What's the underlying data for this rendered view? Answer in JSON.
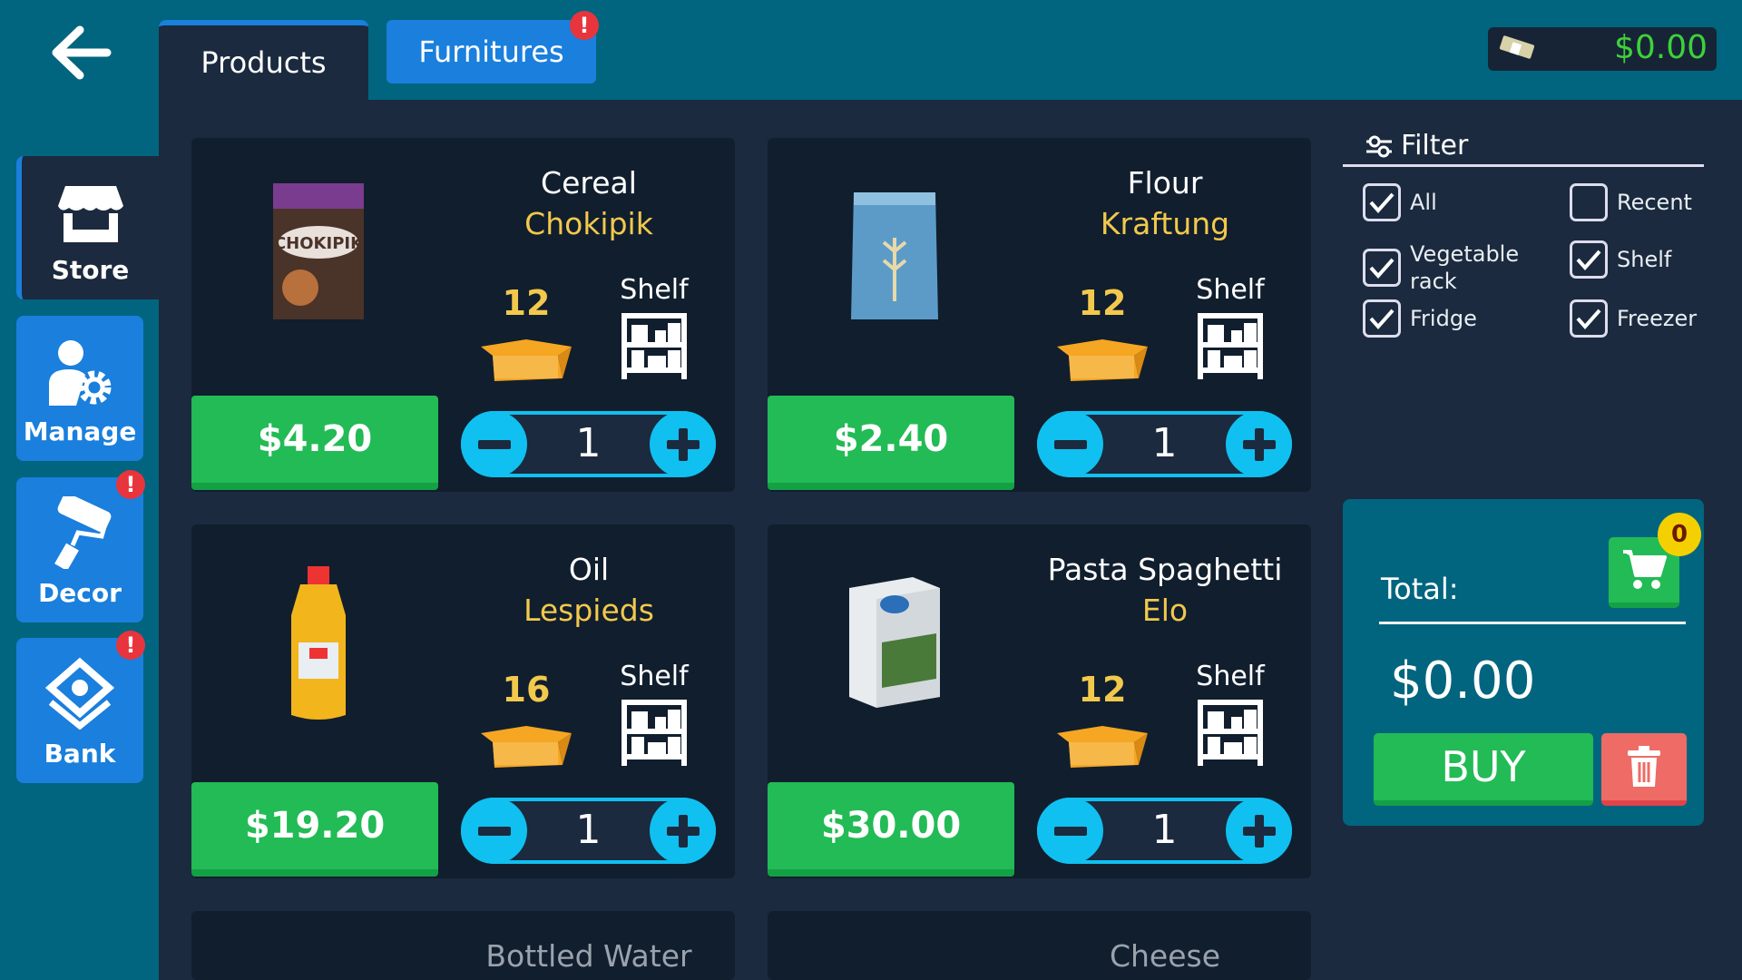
{
  "header": {
    "back_icon": "arrow-left-icon",
    "tabs": [
      {
        "label": "Products",
        "active": true
      },
      {
        "label": "Furnitures",
        "alert": "!"
      }
    ],
    "money": "$0.00",
    "money_icon": "cash-icon"
  },
  "sidebar": {
    "items": [
      {
        "label": "Store",
        "icon": "store-icon",
        "active": true
      },
      {
        "label": "Manage",
        "icon": "manager-gear-icon"
      },
      {
        "label": "Decor",
        "icon": "paint-roller-icon",
        "alert": "!"
      },
      {
        "label": "Bank",
        "icon": "money-stack-icon",
        "alert": "!"
      }
    ]
  },
  "products": [
    {
      "name": "Cereal",
      "brand": "Chokipik",
      "count": "12",
      "placement": "Shelf",
      "price": "$4.20",
      "qty": "1"
    },
    {
      "name": "Flour",
      "brand": "Kraftung",
      "count": "12",
      "placement": "Shelf",
      "price": "$2.40",
      "qty": "1"
    },
    {
      "name": "Oil",
      "brand": "Lespieds",
      "count": "16",
      "placement": "Shelf",
      "price": "$19.20",
      "qty": "1"
    },
    {
      "name": "Pasta Spaghetti",
      "brand": "Elo",
      "count": "12",
      "placement": "Shelf",
      "price": "$30.00",
      "qty": "1"
    },
    {
      "name": "Bottled Water"
    },
    {
      "name": "Cheese"
    }
  ],
  "filter": {
    "title": "Filter",
    "options": [
      {
        "label": "All",
        "checked": true
      },
      {
        "label": "Recent",
        "checked": false
      },
      {
        "label": "Vegetable rack",
        "checked": true
      },
      {
        "label": "Shelf",
        "checked": true
      },
      {
        "label": "Fridge",
        "checked": true
      },
      {
        "label": "Freezer",
        "checked": true
      }
    ]
  },
  "cart": {
    "total_label": "Total:",
    "total": "$0.00",
    "count": "0",
    "buy": "BUY",
    "delete_icon": "trash-icon",
    "cart_icon": "cart-icon"
  },
  "colors": {
    "accent": "#1a7fdd",
    "green": "#22bb55",
    "gold": "#f2c94c",
    "cyan": "#10c0f0",
    "alert": "#e8343c"
  }
}
